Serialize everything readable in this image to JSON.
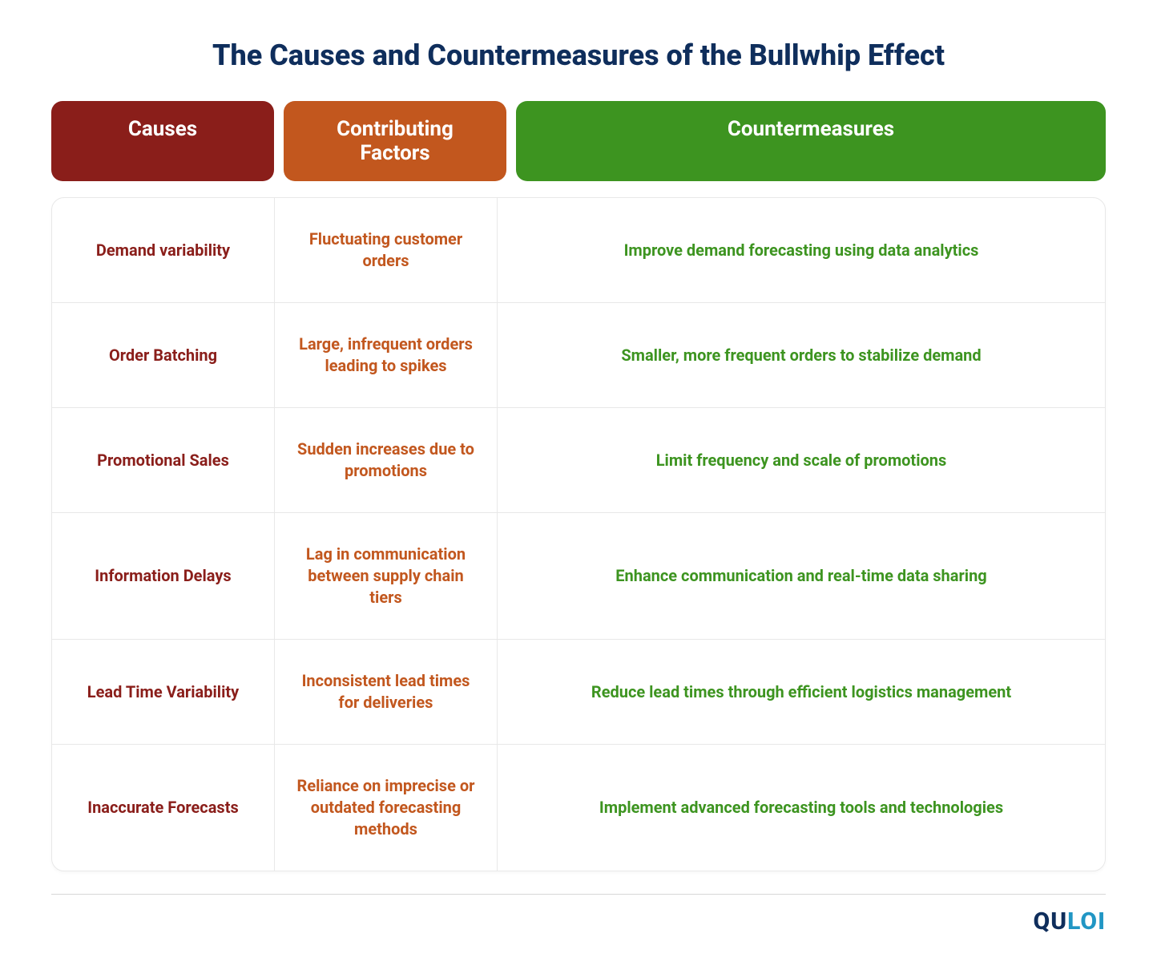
{
  "title": "The Causes and Countermeasures of the Bullwhip Effect",
  "colors": {
    "title": "#0f2e5c",
    "causes_bg": "#8a1e1a",
    "factors_bg": "#c2571e",
    "counter_bg": "#3d9420",
    "causes_text": "#8a1e1a",
    "factors_text": "#c2571e",
    "counter_text": "#3d9420",
    "white": "#ffffff",
    "border": "#e8e8e8",
    "footer_border": "#d8d8d8"
  },
  "columns": {
    "causes": "Causes",
    "factors": "Contributing Factors",
    "counter": "Countermeasures"
  },
  "rows": [
    {
      "cause": "Demand variability",
      "factor": "Fluctuating customer orders",
      "counter": "Improve demand forecasting using data analytics"
    },
    {
      "cause": "Order Batching",
      "factor": "Large, infrequent orders leading to spikes",
      "counter": "Smaller, more frequent orders to stabilize demand"
    },
    {
      "cause": "Promotional Sales",
      "factor": "Sudden increases due to promotions",
      "counter": "Limit frequency and scale of promotions"
    },
    {
      "cause": "Information Delays",
      "factor": "Lag in communication between supply chain tiers",
      "counter": "Enhance communication and real-time data sharing"
    },
    {
      "cause": "Lead Time Variability",
      "factor": "Inconsistent lead times for deliveries",
      "counter": "Reduce lead times through efficient logistics management"
    },
    {
      "cause": "Inaccurate Forecasts",
      "factor": "Reliance on imprecise or outdated forecasting methods",
      "counter": "Implement advanced forecasting tools and technologies"
    }
  ],
  "logo": {
    "part1": "QU",
    "part2": "LOI"
  },
  "layout": {
    "col_widths": [
      "278px",
      "278px",
      "1fr"
    ],
    "title_fontsize": 36,
    "header_fontsize": 26,
    "cell_fontsize": 20,
    "border_radius": 14
  }
}
